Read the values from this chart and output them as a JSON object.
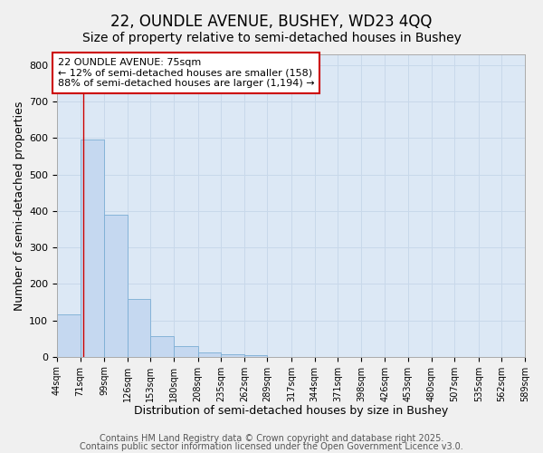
{
  "title": "22, OUNDLE AVENUE, BUSHEY, WD23 4QQ",
  "subtitle": "Size of property relative to semi-detached houses in Bushey",
  "xlabel": "Distribution of semi-detached houses by size in Bushey",
  "ylabel": "Number of semi-detached properties",
  "bar_edges": [
    44,
    71,
    99,
    126,
    153,
    180,
    208,
    235,
    262,
    289,
    317,
    344,
    371,
    398,
    426,
    453,
    480,
    507,
    535,
    562,
    589
  ],
  "bar_heights": [
    117,
    597,
    390,
    158,
    57,
    30,
    12,
    7,
    5,
    0,
    0,
    0,
    0,
    0,
    0,
    0,
    0,
    0,
    0,
    0
  ],
  "bar_color": "#c5d8f0",
  "bar_edge_color": "#7badd4",
  "property_line_x": 75,
  "property_line_color": "#cc0000",
  "annotation_text": "22 OUNDLE AVENUE: 75sqm\n← 12% of semi-detached houses are smaller (158)\n88% of semi-detached houses are larger (1,194) →",
  "annotation_box_color": "#cc0000",
  "ylim": [
    0,
    830
  ],
  "yticks": [
    0,
    100,
    200,
    300,
    400,
    500,
    600,
    700,
    800
  ],
  "grid_color": "#c8d8ea",
  "background_color": "#dce8f5",
  "fig_background": "#f0f0f0",
  "footer_line1": "Contains HM Land Registry data © Crown copyright and database right 2025.",
  "footer_line2": "Contains public sector information licensed under the Open Government Licence v3.0.",
  "title_fontsize": 12,
  "subtitle_fontsize": 10,
  "annotation_fontsize": 8,
  "footer_fontsize": 7
}
